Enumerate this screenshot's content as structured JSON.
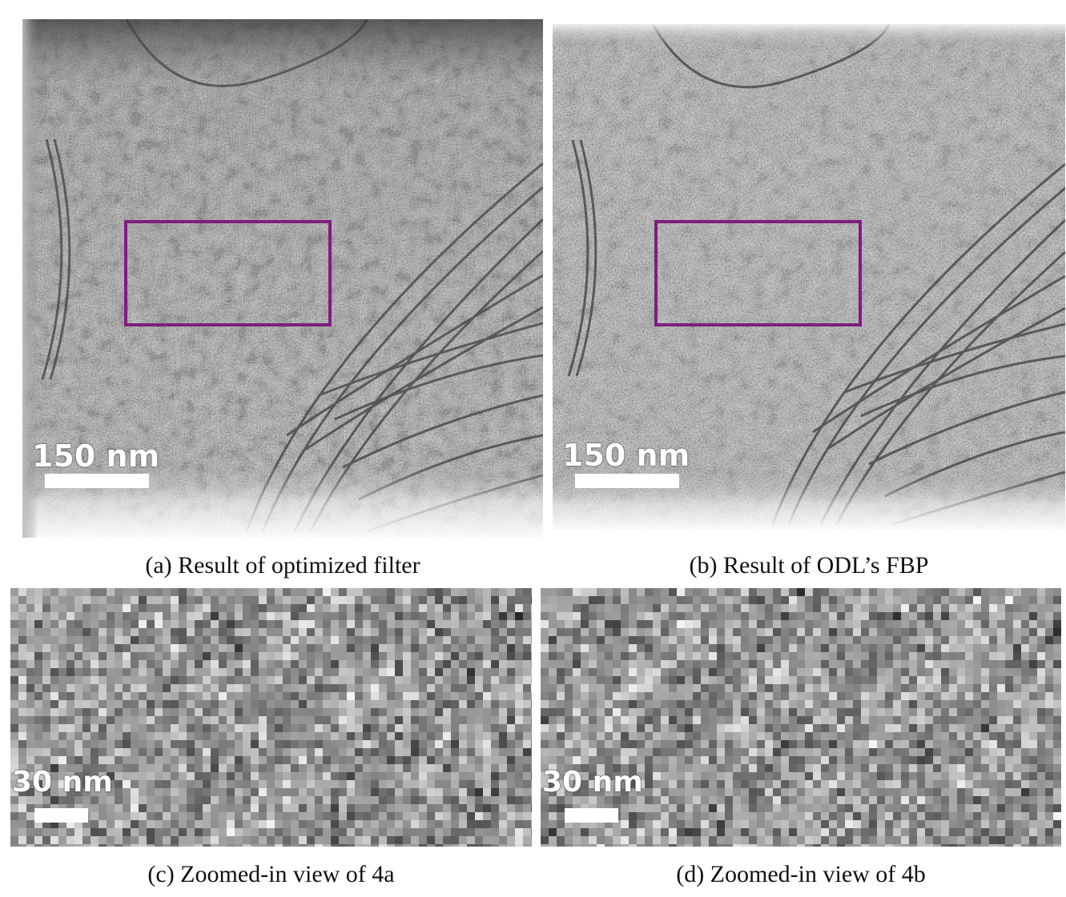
{
  "colors": {
    "roi_box": "#7e1e7e",
    "scalebar": "#ffffff",
    "background": "#ffffff"
  },
  "panels": [
    {
      "id": "a",
      "caption": "(a) Result of optimized filter",
      "scalebar_label": "150 nm",
      "content": "tomogram-slice"
    },
    {
      "id": "b",
      "caption": "(b) Result of ODL’s FBP",
      "scalebar_label": "150 nm",
      "content": "tomogram-slice"
    },
    {
      "id": "c",
      "caption": "(c) Zoomed-in view of 4a",
      "scalebar_label": "30 nm",
      "content": "zoomed-region"
    },
    {
      "id": "d",
      "caption": "(d) Zoomed-in view of 4b",
      "scalebar_label": "30 nm",
      "content": "zoomed-region"
    }
  ]
}
